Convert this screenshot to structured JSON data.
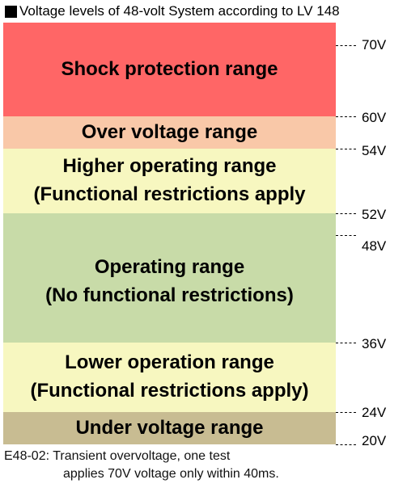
{
  "title": "Voltage levels of 48-volt System according to LV 148",
  "colors": {
    "shock": "#ff6666",
    "over": "#f9c8a8",
    "higher": "#f7f7c0",
    "operating": "#c8dba8",
    "lower": "#f7f7c0",
    "under": "#c8bc92"
  },
  "ranges": {
    "shock": {
      "line1": "Shock protection range",
      "from_v": 60,
      "to_v": 70
    },
    "over": {
      "line1": "Over voltage range",
      "from_v": 54,
      "to_v": 60
    },
    "higher": {
      "line1": "Higher operating range",
      "line2": "(Functional restrictions apply",
      "from_v": 52,
      "to_v": 54
    },
    "operating": {
      "line1": "Operating range",
      "line2": "(No functional restrictions)",
      "from_v": 36,
      "to_v": 52
    },
    "lower": {
      "line1": "Lower operation range",
      "line2": "(Functional restrictions apply)",
      "from_v": 24,
      "to_v": 36
    },
    "under": {
      "line1": "Under voltage range",
      "from_v": 20,
      "to_v": 24
    }
  },
  "voltage_labels": [
    "70V",
    "60V",
    "54V",
    "52V",
    "48V",
    "36V",
    "24V",
    "20V"
  ],
  "note": {
    "line1": "E48-02: Transient overvoltage, one test",
    "line2": "applies 70V voltage only within 40ms."
  }
}
